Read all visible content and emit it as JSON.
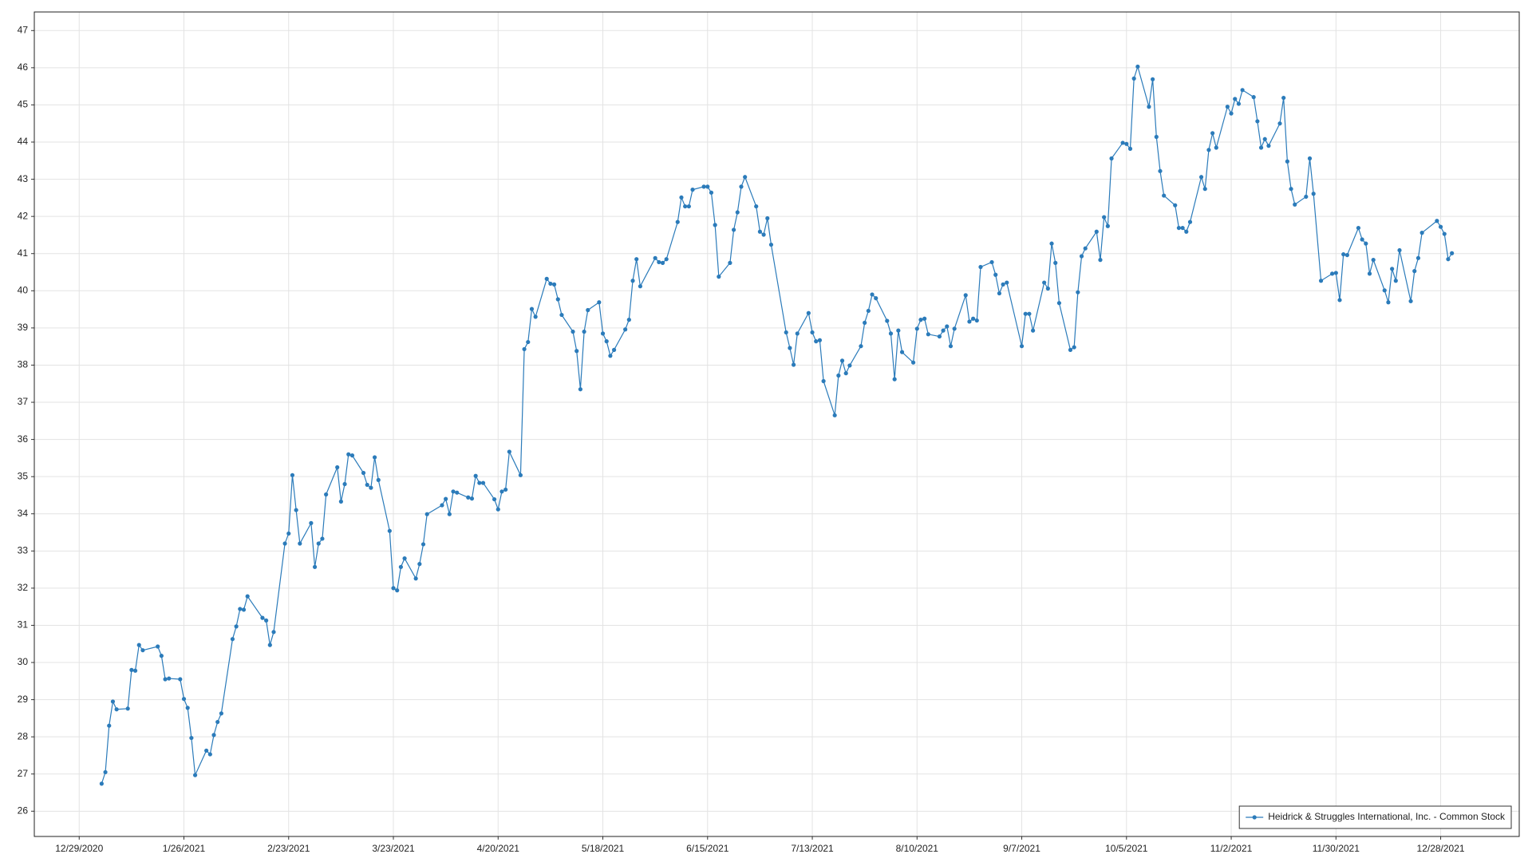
{
  "chart_data": {
    "type": "line",
    "x": [
      "1/4/2021",
      "1/5/2021",
      "1/6/2021",
      "1/7/2021",
      "1/8/2021",
      "1/11/2021",
      "1/12/2021",
      "1/13/2021",
      "1/14/2021",
      "1/15/2021",
      "1/19/2021",
      "1/20/2021",
      "1/21/2021",
      "1/22/2021",
      "1/25/2021",
      "1/26/2021",
      "1/27/2021",
      "1/28/2021",
      "1/29/2021",
      "2/1/2021",
      "2/2/2021",
      "2/3/2021",
      "2/4/2021",
      "2/5/2021",
      "2/8/2021",
      "2/9/2021",
      "2/10/2021",
      "2/11/2021",
      "2/12/2021",
      "2/16/2021",
      "2/17/2021",
      "2/18/2021",
      "2/19/2021",
      "2/22/2021",
      "2/23/2021",
      "2/24/2021",
      "2/25/2021",
      "2/26/2021",
      "3/1/2021",
      "3/2/2021",
      "3/3/2021",
      "3/4/2021",
      "3/5/2021",
      "3/8/2021",
      "3/9/2021",
      "3/10/2021",
      "3/11/2021",
      "3/12/2021",
      "3/15/2021",
      "3/16/2021",
      "3/17/2021",
      "3/18/2021",
      "3/19/2021",
      "3/22/2021",
      "3/23/2021",
      "3/24/2021",
      "3/25/2021",
      "3/26/2021",
      "3/29/2021",
      "3/30/2021",
      "3/31/2021",
      "4/1/2021",
      "4/5/2021",
      "4/6/2021",
      "4/7/2021",
      "4/8/2021",
      "4/9/2021",
      "4/12/2021",
      "4/13/2021",
      "4/14/2021",
      "4/15/2021",
      "4/16/2021",
      "4/19/2021",
      "4/20/2021",
      "4/21/2021",
      "4/22/2021",
      "4/23/2021",
      "4/26/2021",
      "4/27/2021",
      "4/28/2021",
      "4/29/2021",
      "4/30/2021",
      "5/3/2021",
      "5/4/2021",
      "5/5/2021",
      "5/6/2021",
      "5/7/2021",
      "5/10/2021",
      "5/11/2021",
      "5/12/2021",
      "5/13/2021",
      "5/14/2021",
      "5/17/2021",
      "5/18/2021",
      "5/19/2021",
      "5/20/2021",
      "5/21/2021",
      "5/24/2021",
      "5/25/2021",
      "5/26/2021",
      "5/27/2021",
      "5/28/2021",
      "6/1/2021",
      "6/2/2021",
      "6/3/2021",
      "6/4/2021",
      "6/7/2021",
      "6/8/2021",
      "6/9/2021",
      "6/10/2021",
      "6/11/2021",
      "6/14/2021",
      "6/15/2021",
      "6/16/2021",
      "6/17/2021",
      "6/18/2021",
      "6/21/2021",
      "6/22/2021",
      "6/23/2021",
      "6/24/2021",
      "6/25/2021",
      "6/28/2021",
      "6/29/2021",
      "6/30/2021",
      "7/1/2021",
      "7/2/2021",
      "7/6/2021",
      "7/7/2021",
      "7/8/2021",
      "7/9/2021",
      "7/12/2021",
      "7/13/2021",
      "7/14/2021",
      "7/15/2021",
      "7/16/2021",
      "7/19/2021",
      "7/20/2021",
      "7/21/2021",
      "7/22/2021",
      "7/23/2021",
      "7/26/2021",
      "7/27/2021",
      "7/28/2021",
      "7/29/2021",
      "7/30/2021",
      "8/2/2021",
      "8/3/2021",
      "8/4/2021",
      "8/5/2021",
      "8/6/2021",
      "8/9/2021",
      "8/10/2021",
      "8/11/2021",
      "8/12/2021",
      "8/13/2021",
      "8/16/2021",
      "8/17/2021",
      "8/18/2021",
      "8/19/2021",
      "8/20/2021",
      "8/23/2021",
      "8/24/2021",
      "8/25/2021",
      "8/26/2021",
      "8/27/2021",
      "8/30/2021",
      "8/31/2021",
      "9/1/2021",
      "9/2/2021",
      "9/3/2021",
      "9/7/2021",
      "9/8/2021",
      "9/9/2021",
      "9/10/2021",
      "9/13/2021",
      "9/14/2021",
      "9/15/2021",
      "9/16/2021",
      "9/17/2021",
      "9/20/2021",
      "9/21/2021",
      "9/22/2021",
      "9/23/2021",
      "9/24/2021",
      "9/27/2021",
      "9/28/2021",
      "9/29/2021",
      "9/30/2021",
      "10/1/2021",
      "10/4/2021",
      "10/5/2021",
      "10/6/2021",
      "10/7/2021",
      "10/8/2021",
      "10/11/2021",
      "10/12/2021",
      "10/13/2021",
      "10/14/2021",
      "10/15/2021",
      "10/18/2021",
      "10/19/2021",
      "10/20/2021",
      "10/21/2021",
      "10/22/2021",
      "10/25/2021",
      "10/26/2021",
      "10/27/2021",
      "10/28/2021",
      "10/29/2021",
      "11/1/2021",
      "11/2/2021",
      "11/3/2021",
      "11/4/2021",
      "11/5/2021",
      "11/8/2021",
      "11/9/2021",
      "11/10/2021",
      "11/11/2021",
      "11/12/2021",
      "11/15/2021",
      "11/16/2021",
      "11/17/2021",
      "11/18/2021",
      "11/19/2021",
      "11/22/2021",
      "11/23/2021",
      "11/24/2021",
      "11/26/2021",
      "11/29/2021",
      "11/30/2021",
      "12/1/2021",
      "12/2/2021",
      "12/3/2021",
      "12/6/2021",
      "12/7/2021",
      "12/8/2021",
      "12/9/2021",
      "12/10/2021",
      "12/13/2021",
      "12/14/2021",
      "12/15/2021",
      "12/16/2021",
      "12/17/2021",
      "12/20/2021",
      "12/21/2021",
      "12/22/2021",
      "12/23/2021",
      "12/27/2021",
      "12/28/2021",
      "12/29/2021",
      "12/30/2021",
      "12/31/2021"
    ],
    "series": [
      {
        "name": "Heidrick & Struggles International, Inc. - Common Stock",
        "color": "#2b7bba",
        "values": [
          26.74,
          27.05,
          28.3,
          28.95,
          28.74,
          28.76,
          29.8,
          29.78,
          30.47,
          30.33,
          30.43,
          30.18,
          29.55,
          29.57,
          29.55,
          29.02,
          28.78,
          27.97,
          26.97,
          27.63,
          27.53,
          28.05,
          28.4,
          28.63,
          30.63,
          30.97,
          31.44,
          31.42,
          31.78,
          31.2,
          31.13,
          30.47,
          30.82,
          33.2,
          33.47,
          35.04,
          34.1,
          33.2,
          33.75,
          32.57,
          33.2,
          33.33,
          34.52,
          35.25,
          34.33,
          34.8,
          35.6,
          35.57,
          35.1,
          34.78,
          34.7,
          35.52,
          34.91,
          33.54,
          32.0,
          31.94,
          32.57,
          32.8,
          32.26,
          32.65,
          33.18,
          33.99,
          34.23,
          34.4,
          33.99,
          34.6,
          34.57,
          34.44,
          34.41,
          35.02,
          34.83,
          34.83,
          34.39,
          34.12,
          34.6,
          34.65,
          35.67,
          35.04,
          38.43,
          38.62,
          39.51,
          39.3,
          40.32,
          40.19,
          40.17,
          39.77,
          39.35,
          38.9,
          38.38,
          37.35,
          38.9,
          39.48,
          39.69,
          38.85,
          38.64,
          38.25,
          38.41,
          38.96,
          39.22,
          40.27,
          40.85,
          40.12,
          40.88,
          40.77,
          40.75,
          40.85,
          41.85,
          42.51,
          42.27,
          42.27,
          42.72,
          42.8,
          42.8,
          42.64,
          41.77,
          40.38,
          40.75,
          41.64,
          42.11,
          42.8,
          43.06,
          42.27,
          41.59,
          41.51,
          41.95,
          41.24,
          38.88,
          38.46,
          38.01,
          38.85,
          39.4,
          38.88,
          38.64,
          38.67,
          37.57,
          36.65,
          37.72,
          38.12,
          37.78,
          37.99,
          38.51,
          39.14,
          39.46,
          39.9,
          39.8,
          39.19,
          38.85,
          37.62,
          38.93,
          38.35,
          38.07,
          38.98,
          39.22,
          39.25,
          38.83,
          38.77,
          38.93,
          39.04,
          38.51,
          38.98,
          39.88,
          39.17,
          39.25,
          39.2,
          40.64,
          40.77,
          40.43,
          39.93,
          40.17,
          40.22,
          38.51,
          39.38,
          39.38,
          38.93,
          40.22,
          40.06,
          41.27,
          40.75,
          39.67,
          38.41,
          38.48,
          39.96,
          40.93,
          41.14,
          41.59,
          40.83,
          41.98,
          41.74,
          43.56,
          43.98,
          43.95,
          43.82,
          45.71,
          46.03,
          44.95,
          45.69,
          44.14,
          43.22,
          42.56,
          42.3,
          41.69,
          41.69,
          41.59,
          41.85,
          43.06,
          42.74,
          43.79,
          44.24,
          43.85,
          44.95,
          44.77,
          45.16,
          45.03,
          45.4,
          45.21,
          44.56,
          43.85,
          44.08,
          43.9,
          44.5,
          45.19,
          43.48,
          42.74,
          42.32,
          42.53,
          43.56,
          42.61,
          40.27,
          40.46,
          40.48,
          39.75,
          40.98,
          40.96,
          41.69,
          41.38,
          41.27,
          40.46,
          40.83,
          40.01,
          39.69,
          40.59,
          40.27,
          41.09,
          39.72,
          40.53,
          40.88,
          41.56,
          41.88,
          41.72,
          41.53,
          40.85,
          41.01
        ]
      }
    ],
    "xlim": [
      "12/17/2020",
      "1/18/2022"
    ],
    "xticks": [
      "12/29/2020",
      "1/26/2021",
      "2/23/2021",
      "3/23/2021",
      "4/20/2021",
      "5/18/2021",
      "6/15/2021",
      "7/13/2021",
      "8/10/2021",
      "9/7/2021",
      "10/5/2021",
      "11/2/2021",
      "11/30/2021",
      "12/28/2021"
    ],
    "ylim": [
      25.32,
      47.5
    ],
    "yticks": [
      26,
      27,
      28,
      29,
      30,
      31,
      32,
      33,
      34,
      35,
      36,
      37,
      38,
      39,
      40,
      41,
      42,
      43,
      44,
      45,
      46,
      47
    ],
    "grid": true,
    "legend": "lower right"
  }
}
